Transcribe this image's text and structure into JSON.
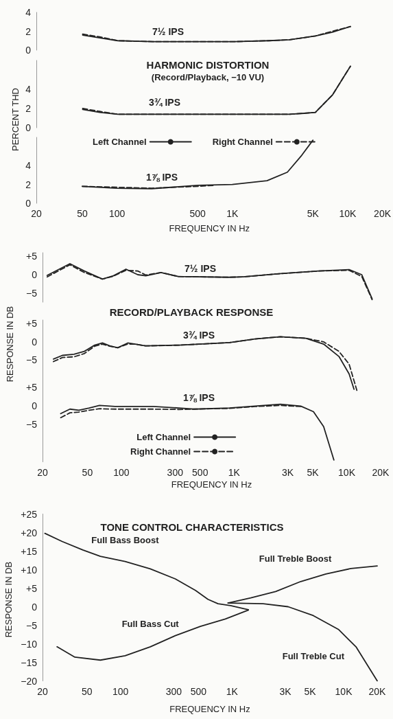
{
  "chart_data": [
    {
      "type": "line",
      "log": "x",
      "tick_labels": "y",
      "marker": "none",
      "annotations": [
        "7½ IPS"
      ],
      "xlim": [
        20,
        20000
      ],
      "ylim": [
        0,
        4
      ],
      "yticks": [
        0,
        2,
        4
      ],
      "series": [
        {
          "color": "#222222",
          "line_style": "solid",
          "x": [
            50,
            70,
            100,
            200,
            500,
            1000,
            2000,
            3000,
            5000,
            7000,
            10000
          ],
          "values": [
            1.6,
            1.3,
            1.0,
            0.9,
            0.9,
            0.9,
            1.0,
            1.1,
            1.5,
            1.9,
            2.5
          ]
        },
        {
          "color": "#222222",
          "line_style": "dashed",
          "x": [
            50,
            70,
            100,
            200,
            500,
            1000,
            2000,
            3000,
            5000,
            7000,
            10000
          ],
          "values": [
            1.7,
            1.4,
            1.0,
            0.9,
            0.9,
            0.9,
            1.0,
            1.1,
            1.5,
            2.0,
            2.5
          ]
        }
      ]
    },
    {
      "type": "line",
      "log": "x",
      "tick_labels": "y",
      "marker": "none",
      "title": "HARMONIC DISTORTION",
      "subtitle": "(Record/Playback, −10 VU)",
      "ylabel": "PERCENT THD",
      "annotations": [
        "3¾ IPS"
      ],
      "xlim": [
        20,
        20000
      ],
      "ylim": [
        0,
        7
      ],
      "yticks": [
        0,
        2,
        4
      ],
      "series": [
        {
          "color": "#222222",
          "line_style": "solid",
          "x": [
            50,
            70,
            100,
            200,
            500,
            1000,
            2000,
            3000,
            4000,
            5000,
            7000,
            10000
          ],
          "values": [
            1.9,
            1.6,
            1.4,
            1.4,
            1.4,
            1.4,
            1.4,
            1.4,
            1.5,
            1.6,
            3.4,
            6.4
          ]
        },
        {
          "color": "#222222",
          "line_style": "dashed",
          "x": [
            50,
            70,
            100,
            200,
            500,
            1000,
            2000,
            3000,
            4000,
            5000,
            7000,
            10000
          ],
          "values": [
            2.0,
            1.7,
            1.4,
            1.4,
            1.4,
            1.4,
            1.4,
            1.4,
            1.5,
            1.6,
            3.4,
            6.4
          ]
        }
      ]
    },
    {
      "type": "line",
      "log": "x",
      "marker": "none",
      "legend": "top",
      "xlabel": "FREQUENCY IN Hz",
      "annotations": [
        "1⅞ IPS"
      ],
      "xlim": [
        20,
        20000
      ],
      "xticks": [
        20,
        50,
        100,
        500,
        {
          "value": 1000,
          "label": "1K"
        },
        {
          "value": 5000,
          "label": "5K"
        },
        {
          "value": 10000,
          "label": "10K"
        },
        {
          "value": 20000,
          "label": "20K"
        }
      ],
      "ylim": [
        0,
        7
      ],
      "yticks": [
        0,
        2,
        4
      ],
      "series": [
        {
          "name": "Left Channel",
          "color": "#222222",
          "line_style": "solid",
          "x": [
            50,
            100,
            200,
            500,
            1000,
            2000,
            3000,
            4000,
            5000
          ],
          "values": [
            1.8,
            1.6,
            1.55,
            1.9,
            2.0,
            2.4,
            3.3,
            5.1,
            6.7
          ]
        },
        {
          "name": "Right Channel",
          "color": "#222222",
          "line_style": "dashed",
          "x": [
            50,
            100,
            200,
            500,
            700
          ],
          "values": [
            1.8,
            1.7,
            1.6,
            1.8,
            1.9
          ]
        }
      ]
    },
    {
      "type": "line",
      "log": "x",
      "tick_labels": "y",
      "marker": "none",
      "annotations": [
        "7½ IPS"
      ],
      "xlim": [
        20,
        20000
      ],
      "ylim": [
        -7.5,
        6
      ],
      "yticks": [
        {
          "value": 5,
          "label": "+5"
        },
        0,
        {
          "value": -5,
          "label": "−5"
        }
      ],
      "series": [
        {
          "color": "#222222",
          "line_style": "solid",
          "x": [
            22,
            35,
            47,
            68,
            85,
            110,
            140,
            165,
            225,
            320,
            900,
            1200,
            2600,
            5600,
            10500,
            13600,
            16800
          ],
          "values": [
            -0.2,
            3.0,
            1.0,
            -1.2,
            -0.3,
            1.5,
            0,
            -0.3,
            0.6,
            -0.5,
            -0.7,
            -0.6,
            0.3,
            1.0,
            1.4,
            0,
            -6.6
          ]
        },
        {
          "color": "#222222",
          "line_style": "dashed",
          "x": [
            22,
            35,
            47,
            68,
            85,
            110,
            140,
            165,
            225,
            320,
            900,
            1200,
            2600,
            5600,
            10500,
            13600,
            16800
          ],
          "values": [
            -0.6,
            2.7,
            0.6,
            -1.2,
            -0.4,
            1.2,
            1.0,
            -0.1,
            0.6,
            -0.5,
            -0.7,
            -0.6,
            0.3,
            1.0,
            1.2,
            -0.5,
            -6.8
          ]
        }
      ]
    },
    {
      "type": "line",
      "log": "x",
      "tick_labels": "y",
      "marker": "none",
      "title": "RECORD/PLAYBACK RESPONSE",
      "ylabel": "RESPONSE IN DB",
      "annotations": [
        "3¾ IPS"
      ],
      "xlim": [
        20,
        20000
      ],
      "ylim": [
        -13.5,
        6
      ],
      "yticks": [
        {
          "value": 5,
          "label": "+5"
        },
        0,
        {
          "value": -5,
          "label": "−5"
        }
      ],
      "series": [
        {
          "color": "#222222",
          "line_style": "solid",
          "x": [
            25,
            30,
            38,
            47,
            58,
            68,
            79,
            93,
            114,
            133,
            164,
            323,
            912,
            1530,
            2580,
            4340,
            6240,
            8530,
            10500,
            11600
          ],
          "values": [
            -4.7,
            -3.7,
            -3.4,
            -2.6,
            -0.9,
            -0.3,
            -1.1,
            -1.6,
            -0.3,
            -0.6,
            -1.1,
            -0.9,
            -0.2,
            0.8,
            1.4,
            1.0,
            -0.6,
            -4.0,
            -8.8,
            -13.0
          ]
        },
        {
          "color": "#222222",
          "line_style": "dashed",
          "x": [
            25,
            30,
            38,
            47,
            58,
            68,
            79,
            93,
            114,
            133,
            164,
            323,
            912,
            1530,
            2580,
            4340,
            6240,
            8530,
            10500,
            12300
          ],
          "values": [
            -5.4,
            -4.3,
            -4.1,
            -3.2,
            -1.2,
            -0.6,
            -1.2,
            -1.6,
            -0.6,
            -0.6,
            -1.1,
            -0.9,
            -0.2,
            0.8,
            1.4,
            1.0,
            0,
            -2.6,
            -6.1,
            -13.3
          ]
        }
      ]
    },
    {
      "type": "line",
      "log": "x",
      "marker": "none",
      "legend": "bottom",
      "xlabel": "FREQUENCY IN Hz",
      "annotations": [
        "1⅞ IPS"
      ],
      "xlim": [
        20,
        20000
      ],
      "xticks": [
        20,
        50,
        100,
        300,
        500,
        {
          "value": 1000,
          "label": "1K"
        },
        {
          "value": 3000,
          "label": "3K"
        },
        {
          "value": 5000,
          "label": "5K"
        },
        {
          "value": 10000,
          "label": "10K"
        },
        {
          "value": 20000,
          "label": "20K"
        }
      ],
      "ylim": [
        -15,
        6
      ],
      "yticks": [
        {
          "value": 5,
          "label": "+5"
        },
        0,
        {
          "value": -5,
          "label": "−5"
        }
      ],
      "series": [
        {
          "name": "Left Channel",
          "color": "#222222",
          "line_style": "solid",
          "x": [
            29,
            35,
            42,
            52,
            64,
            88,
            192,
            323,
            441,
            912,
            1530,
            2580,
            3910,
            5070,
            6240,
            7690
          ],
          "values": [
            -2.0,
            -0.8,
            -1.1,
            -0.5,
            0.2,
            -0.1,
            -0.1,
            -0.5,
            -0.8,
            -0.5,
            0,
            0.5,
            0,
            -1.5,
            -5.5,
            -14.5
          ]
        },
        {
          "name": "Right Channel",
          "color": "#222222",
          "line_style": "dashed",
          "x": [
            29,
            35,
            42,
            52,
            64,
            88,
            192,
            323,
            441,
            912,
            1530,
            2580,
            3910
          ],
          "values": [
            -3.1,
            -1.8,
            -1.6,
            -1.1,
            -0.7,
            -0.8,
            -0.8,
            -0.9,
            -0.8,
            -0.6,
            -0.1,
            0.2,
            -0.1
          ]
        }
      ]
    },
    {
      "type": "line",
      "log": "x",
      "marker": "none",
      "title": "TONE CONTROL CHARACTERISTICS",
      "xlabel": "FREQUENCY IN Hz",
      "ylabel": "RESPONSE IN DB",
      "xlim": [
        20,
        20000
      ],
      "xticks": [
        20,
        50,
        100,
        300,
        500,
        {
          "value": 1000,
          "label": "1K"
        },
        {
          "value": 3000,
          "label": "3K"
        },
        {
          "value": 5000,
          "label": "5K"
        },
        {
          "value": 10000,
          "label": "10K"
        },
        {
          "value": 20000,
          "label": "20K"
        }
      ],
      "ylim": [
        -20,
        25
      ],
      "yticks": [
        {
          "value": 25,
          "label": "+25"
        },
        {
          "value": 20,
          "label": "+20"
        },
        {
          "value": 15,
          "label": "+15"
        },
        {
          "value": 10,
          "label": "+10"
        },
        {
          "value": 5,
          "label": "+5"
        },
        0,
        {
          "value": -5,
          "label": "−5"
        },
        {
          "value": -10,
          "label": "−10"
        },
        {
          "value": -15,
          "label": "−15"
        },
        {
          "value": -20,
          "label": "−20"
        }
      ],
      "series": [
        {
          "name": "Full Bass Boost",
          "color": "#222222",
          "line_style": "solid",
          "x": [
            21,
            30,
            46,
            66,
            110,
            185,
            310,
            470,
            608,
            748,
            970,
            1400
          ],
          "values": [
            19.8,
            17.6,
            15.3,
            13.6,
            12.2,
            10.2,
            7.5,
            4.4,
            2.0,
            0.8,
            0.3,
            -0.8
          ]
        },
        {
          "name": "Full Bass Cut",
          "color": "#222222",
          "line_style": "solid",
          "x": [
            27,
            39,
            66,
            110,
            185,
            310,
            520,
            870,
            1400
          ],
          "values": [
            -10.8,
            -13.6,
            -14.4,
            -13.2,
            -10.8,
            -7.8,
            -5.3,
            -3.3,
            -0.9
          ]
        },
        {
          "name": "Full Treble Boost",
          "color": "#222222",
          "line_style": "solid",
          "x": [
            920,
            1470,
            2460,
            4130,
            6920,
            11600,
            20000
          ],
          "values": [
            1.0,
            2.4,
            4.1,
            6.8,
            8.8,
            10.3,
            11.0
          ]
        },
        {
          "name": "Full Treble Cut",
          "color": "#222222",
          "line_style": "solid",
          "x": [
            920,
            1900,
            3180,
            5350,
            8970,
            12900,
            20000
          ],
          "values": [
            1.0,
            0.8,
            0,
            -2.4,
            -6.1,
            -10.8,
            -20.0
          ]
        }
      ]
    }
  ]
}
